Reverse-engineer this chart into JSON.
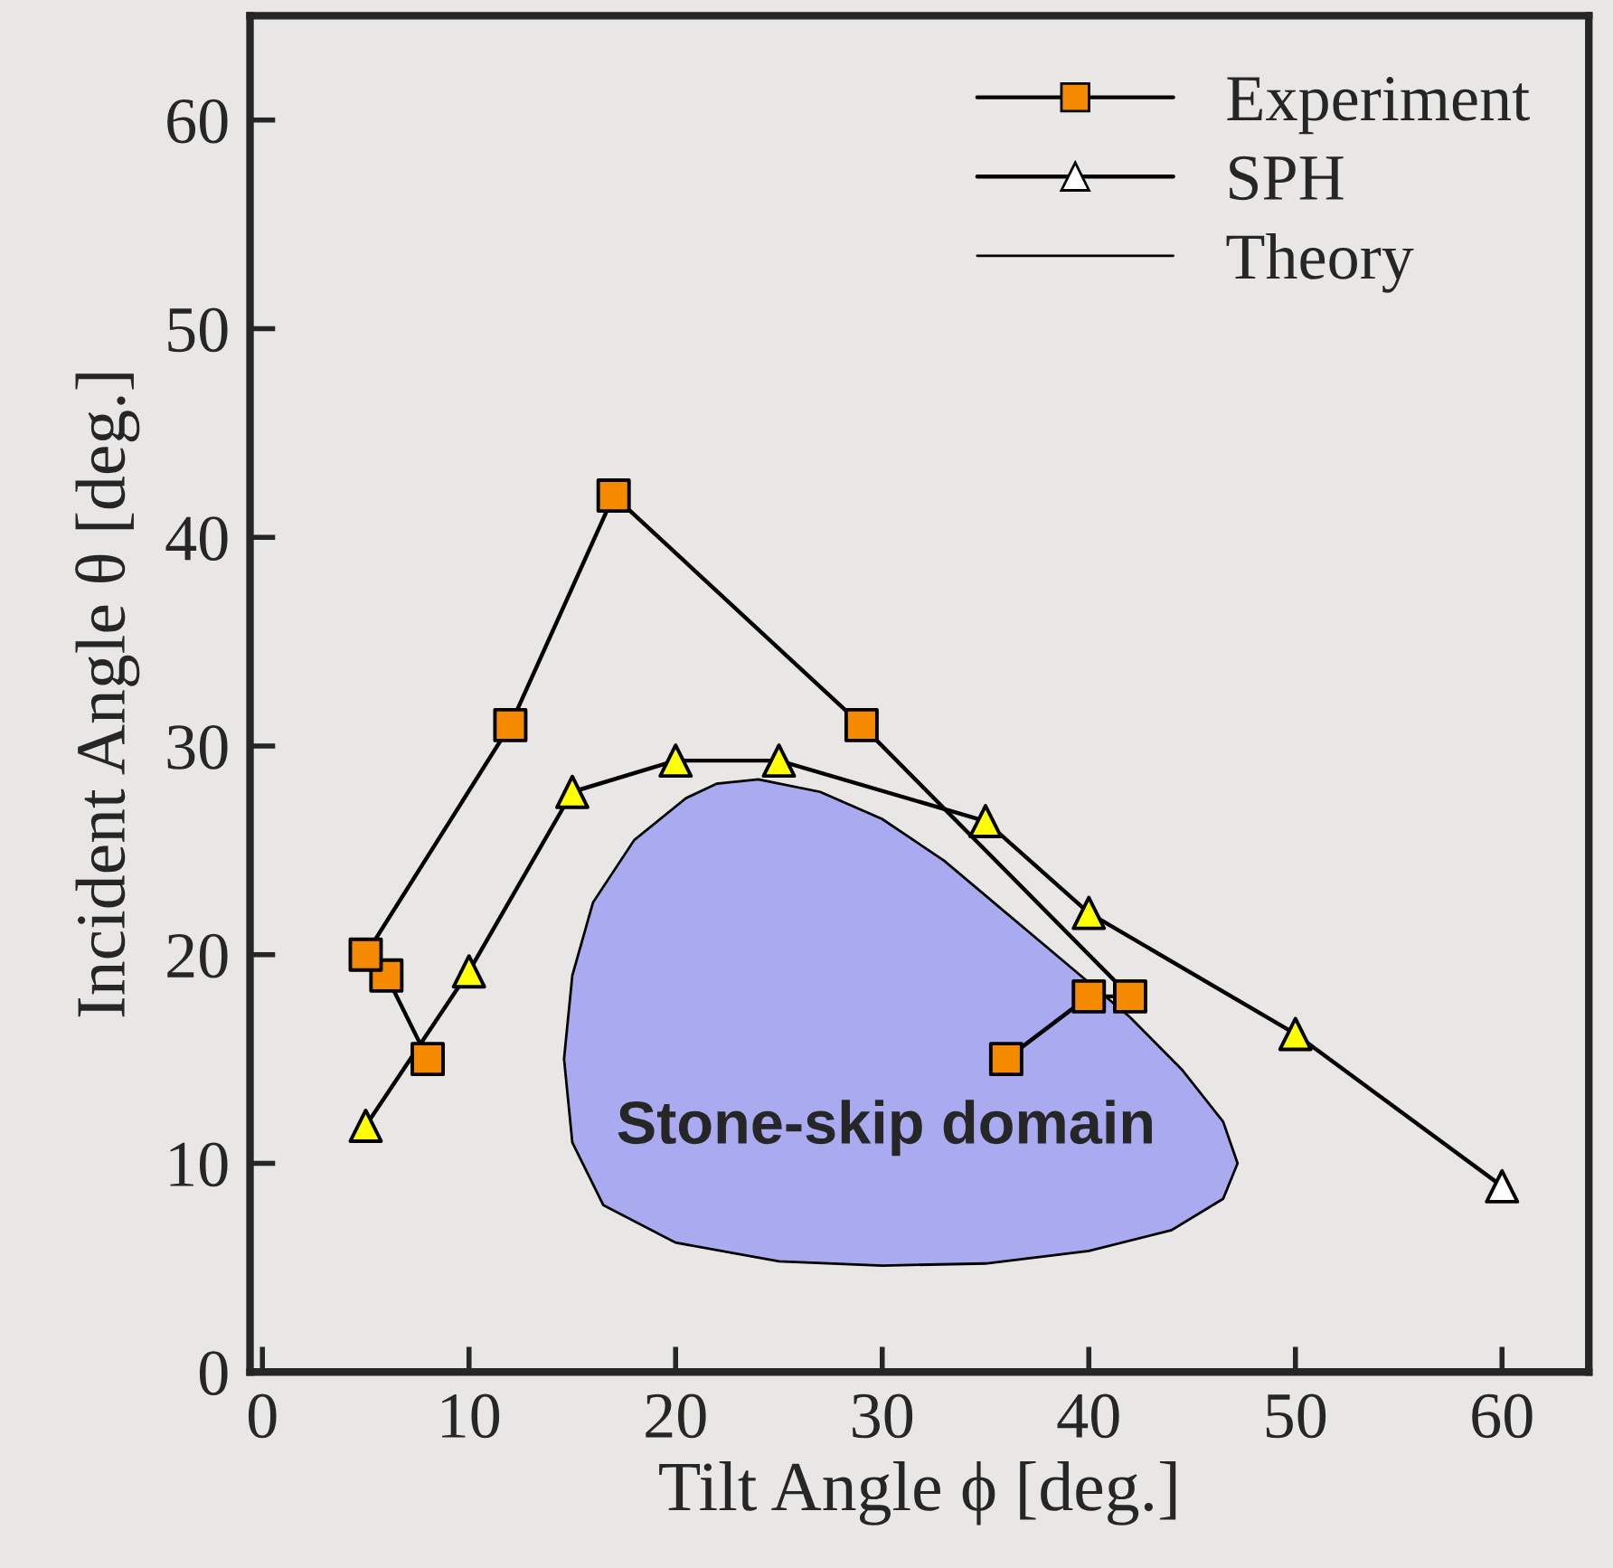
{
  "chart_data": {
    "type": "line",
    "xlabel": "Tilt Angle ϕ [deg.]",
    "ylabel": "Incident Angle θ [deg.]",
    "xlim": [
      -0.6,
      64.2
    ],
    "ylim": [
      0,
      65
    ],
    "xticks": [
      0,
      10,
      20,
      30,
      40,
      50,
      60
    ],
    "yticks": [
      0,
      10,
      20,
      30,
      40,
      50,
      60
    ],
    "grid": false,
    "legend": "top right",
    "annotations": [
      "Stone-skip domain"
    ],
    "series": [
      {
        "name": "Theory",
        "type": "area",
        "color": "#aaaaf0",
        "marker": "none",
        "x": [
          24,
          27,
          30,
          33,
          36,
          39,
          42,
          44.5,
          46.5,
          47.2,
          46.5,
          44,
          40,
          35,
          30,
          25,
          20,
          16.5,
          15,
          14.6,
          15,
          16,
          18,
          20.5,
          22,
          24
        ],
        "values": [
          28.4,
          27.8,
          26.5,
          24.5,
          22,
          19.5,
          17,
          14.5,
          12,
          10,
          8.3,
          6.8,
          5.8,
          5.2,
          5.1,
          5.3,
          6.2,
          8,
          11,
          15,
          19,
          22.5,
          25.5,
          27.5,
          28.2,
          28.4
        ]
      },
      {
        "name": "Experiment",
        "color": "#f58a00",
        "marker": "square",
        "x": [
          8,
          6,
          5,
          12,
          17,
          29,
          42,
          40,
          36
        ],
        "values": [
          15,
          19,
          20,
          31,
          42,
          31,
          18,
          18,
          15
        ]
      },
      {
        "name": "SPH",
        "color": "#ffff00",
        "marker": "triangle",
        "colors": [
          "#ffff00",
          "#ffff00",
          "#ffff00",
          "#ffff00",
          "#ffff00",
          "#ffff00",
          "#ffff00",
          "#ffff00",
          "#ffffff"
        ],
        "x": [
          5,
          10,
          15,
          20,
          25,
          35,
          40,
          50,
          60
        ],
        "values": [
          11.8,
          19.2,
          27.8,
          29.3,
          29.3,
          26.4,
          22,
          16.2,
          8.9
        ]
      }
    ]
  }
}
